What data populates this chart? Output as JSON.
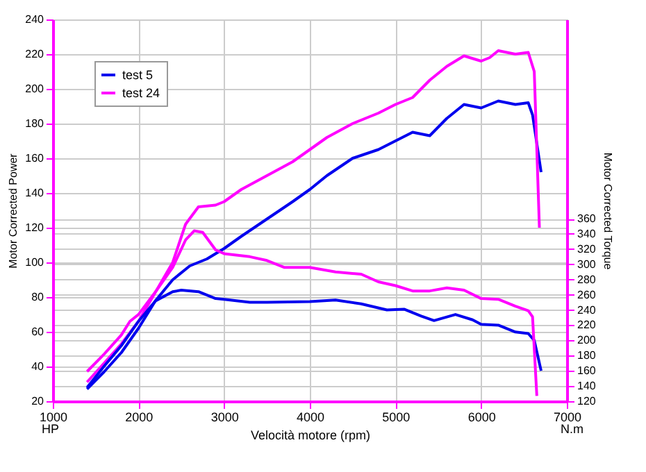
{
  "chart_data": {
    "type": "line",
    "xlabel": "Velocità motore (rpm)",
    "ylabel": "Motor Corrected Power",
    "y2label": "Motor Corrected Torque",
    "annotations": [
      "HP",
      "N.m"
    ],
    "xlim": [
      1000,
      7000
    ],
    "xticks": [
      1000,
      2000,
      3000,
      4000,
      5000,
      6000,
      7000
    ],
    "ylim": [
      20,
      240
    ],
    "yticks": [
      20,
      40,
      60,
      80,
      100,
      120,
      140,
      160,
      180,
      200,
      220,
      240
    ],
    "y2lim": [
      120,
      622
    ],
    "y2ticks": [
      120,
      140,
      160,
      180,
      200,
      220,
      240,
      260,
      280,
      300,
      320,
      340,
      360
    ],
    "grid": true,
    "legend": "top left",
    "marker": "none",
    "line_style": "solid",
    "series": [
      {
        "name": "test 5",
        "color": "#0000ee",
        "x": [
          1400,
          1600,
          1800,
          2000,
          2200,
          2400,
          2600,
          2800,
          3000,
          3200,
          3500,
          3800,
          4000,
          4200,
          4500,
          4800,
          5000,
          5200,
          5400,
          5600,
          5800,
          6000,
          6200,
          6400,
          6550,
          6600,
          6700
        ],
        "values": [
          27,
          37,
          48,
          62,
          78,
          90,
          98,
          102,
          108,
          115,
          125,
          135,
          142,
          150,
          160,
          165,
          170,
          175,
          173,
          183,
          191,
          189,
          193,
          191,
          192,
          185,
          152
        ]
      },
      {
        "name": "test 24",
        "color": "#ff00ff",
        "x": [
          1400,
          1600,
          1800,
          2000,
          2200,
          2400,
          2550,
          2700,
          2900,
          3000,
          3200,
          3500,
          3800,
          4000,
          4200,
          4500,
          4800,
          5000,
          5200,
          5400,
          5600,
          5800,
          6000,
          6100,
          6200,
          6400,
          6550,
          6620,
          6680
        ],
        "values": [
          31,
          42,
          53,
          66,
          83,
          100,
          122,
          132,
          133,
          135,
          142,
          150,
          158,
          165,
          172,
          180,
          186,
          191,
          195,
          205,
          213,
          219,
          216,
          218,
          222,
          220,
          221,
          210,
          120
        ]
      },
      {
        "color": "#0000ee",
        "axis": "y2",
        "x": [
          1400,
          1600,
          1800,
          2000,
          2200,
          2400,
          2500,
          2700,
          2900,
          3000,
          3300,
          3500,
          4000,
          4300,
          4600,
          4900,
          5100,
          5300,
          5450,
          5700,
          5900,
          6000,
          6200,
          6400,
          6550,
          6620,
          6700
        ],
        "values": [
          138,
          166,
          193,
          225,
          252,
          264,
          266,
          264,
          255,
          254,
          250,
          250,
          251,
          253,
          248,
          240,
          241,
          232,
          226,
          234,
          227,
          221,
          220,
          211,
          209,
          200,
          160
        ]
      },
      {
        "color": "#ff00ff",
        "axis": "y2",
        "x": [
          1400,
          1600,
          1800,
          1900,
          2000,
          2200,
          2400,
          2550,
          2650,
          2750,
          2900,
          3000,
          3300,
          3500,
          3700,
          4000,
          4300,
          4600,
          4800,
          5000,
          5200,
          5400,
          5600,
          5800,
          6000,
          6200,
          6400,
          6550,
          6600,
          6650
        ],
        "values": [
          159,
          182,
          207,
          225,
          234,
          264,
          296,
          332,
          344,
          342,
          319,
          314,
          310,
          305,
          296,
          296,
          290,
          287,
          277,
          272,
          265,
          265,
          269,
          266,
          255,
          254,
          245,
          239,
          231,
          127
        ]
      }
    ]
  }
}
